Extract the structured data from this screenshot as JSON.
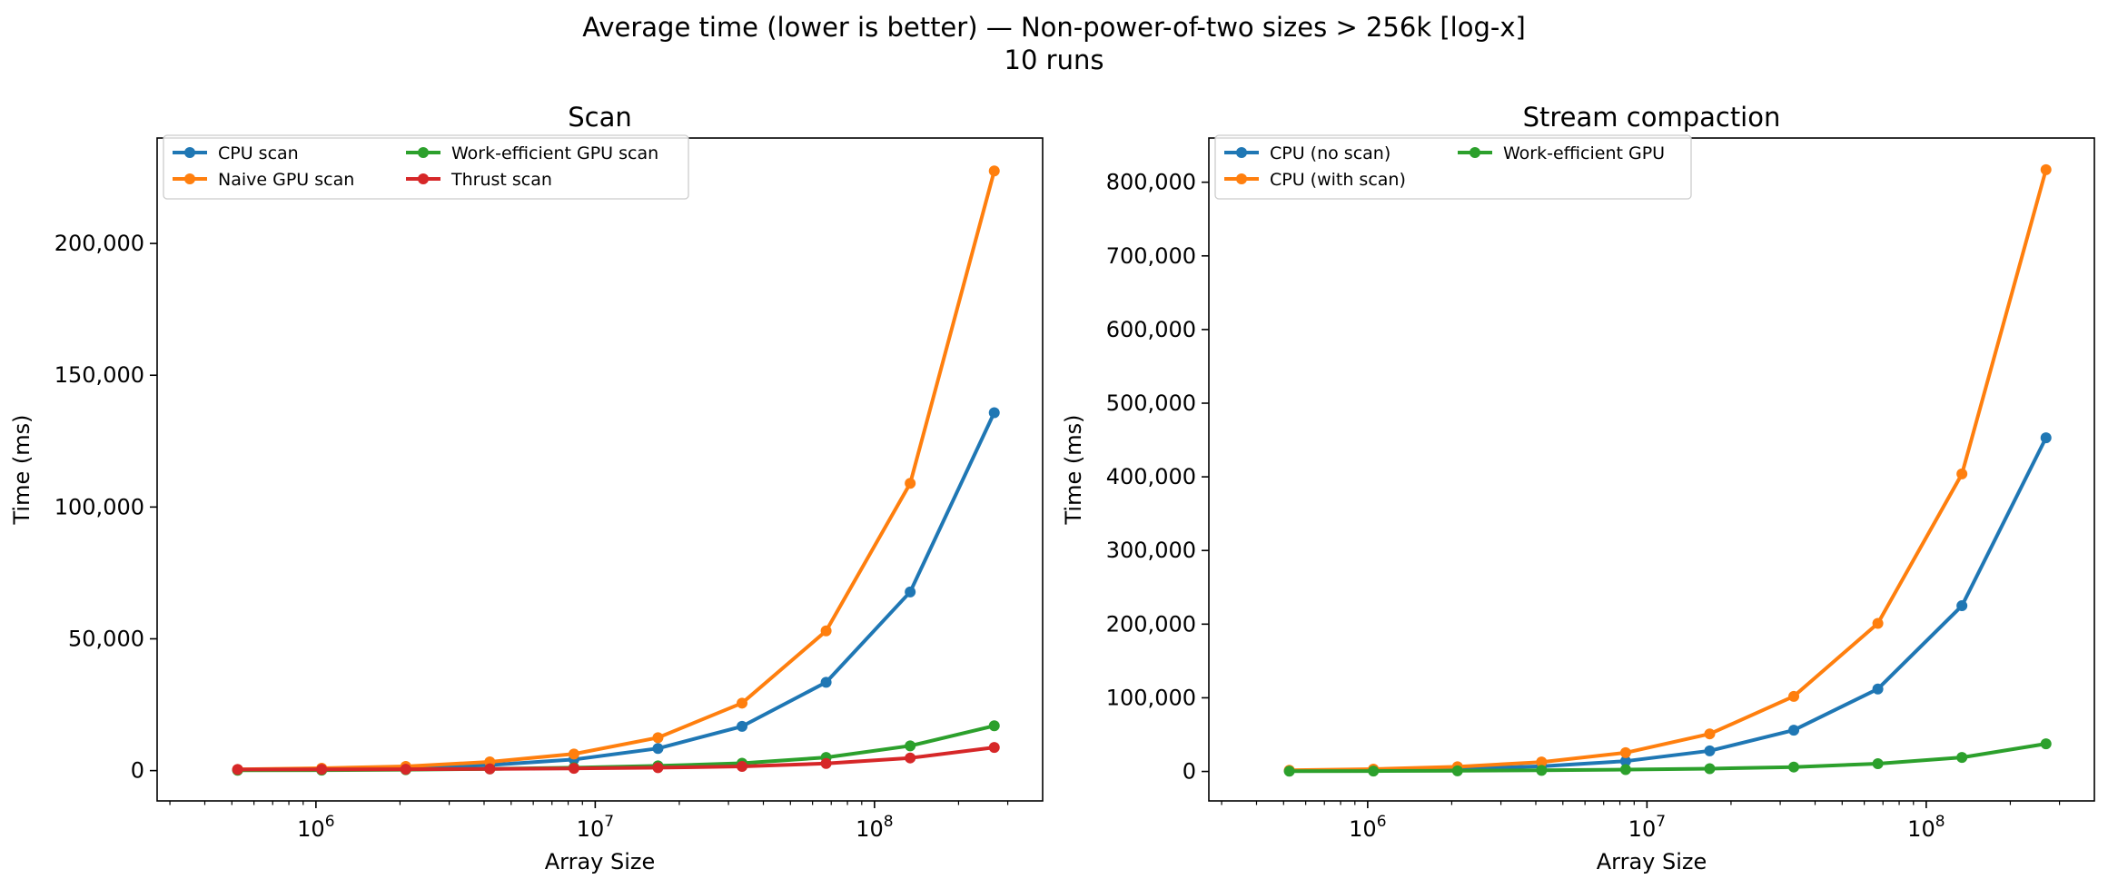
{
  "figure": {
    "title_line1": "Average time (lower is better) — Non-power-of-two sizes > 256k [log-x]",
    "title_line2": "10 runs"
  },
  "chart_data": [
    {
      "type": "line",
      "title": "Scan",
      "xlabel": "Array Size",
      "ylabel": "Time (ms)",
      "xscale": "log",
      "xlim": [
        270000,
        400000000
      ],
      "ylim": [
        -11500,
        240000
      ],
      "x_ticks": [
        1000000,
        10000000,
        100000000
      ],
      "x_tick_labels": [
        [
          "10",
          "6"
        ],
        [
          "10",
          "7"
        ],
        [
          "10",
          "8"
        ]
      ],
      "y_ticks": [
        0,
        50000,
        100000,
        150000,
        200000
      ],
      "y_tick_labels": [
        "0",
        "50,000",
        "100,000",
        "150,000",
        "200,000"
      ],
      "grid": false,
      "legend": {
        "position": "top-left",
        "columns": 2
      },
      "x": [
        524285,
        1048573,
        2097149,
        4194301,
        8388605,
        16777213,
        33554429,
        67108861,
        134217725,
        268435453
      ],
      "series": [
        {
          "name": "CPU scan",
          "color": "#1f77b4",
          "values": [
            250,
            520,
            1050,
            2100,
            4200,
            8400,
            16800,
            33500,
            67800,
            135800
          ]
        },
        {
          "name": "Naive GPU scan",
          "color": "#ff7f0e",
          "values": [
            450,
            900,
            1600,
            3300,
            6300,
            12500,
            25600,
            53000,
            109000,
            227500
          ]
        },
        {
          "name": "Work-efficient GPU scan",
          "color": "#2ca02c",
          "values": [
            120,
            180,
            350,
            650,
            1100,
            1800,
            2800,
            5000,
            9400,
            17000
          ]
        },
        {
          "name": "Thrust scan",
          "color": "#d62728",
          "values": [
            420,
            460,
            520,
            650,
            850,
            1100,
            1600,
            2700,
            4800,
            8800
          ]
        }
      ]
    },
    {
      "type": "line",
      "title": "Stream compaction",
      "xlabel": "Array Size",
      "ylabel": "Time (ms)",
      "xscale": "log",
      "xlim": [
        270000,
        400000000
      ],
      "ylim": [
        -40000,
        860000
      ],
      "x_ticks": [
        1000000,
        10000000,
        100000000
      ],
      "x_tick_labels": [
        [
          "10",
          "6"
        ],
        [
          "10",
          "7"
        ],
        [
          "10",
          "8"
        ]
      ],
      "y_ticks": [
        0,
        100000,
        200000,
        300000,
        400000,
        500000,
        600000,
        700000,
        800000
      ],
      "y_tick_labels": [
        "0",
        "100,000",
        "200,000",
        "300,000",
        "400,000",
        "500,000",
        "600,000",
        "700,000",
        "800,000"
      ],
      "grid": false,
      "legend": {
        "position": "top-left",
        "columns": 2
      },
      "x": [
        524285,
        1048573,
        2097149,
        4194301,
        8388605,
        16777213,
        33554429,
        67108861,
        134217725,
        268435453
      ],
      "series": [
        {
          "name": "CPU (no scan)",
          "color": "#1f77b4",
          "values": [
            800,
            1700,
            3500,
            7000,
            14000,
            28000,
            56000,
            112000,
            225000,
            453000
          ]
        },
        {
          "name": "CPU (with scan)",
          "color": "#ff7f0e",
          "values": [
            1600,
            3200,
            6400,
            12800,
            25500,
            51000,
            102000,
            201000,
            404000,
            817000
          ]
        },
        {
          "name": "Work-efficient GPU",
          "color": "#2ca02c",
          "values": [
            300,
            500,
            900,
            1500,
            2500,
            3800,
            6000,
            10500,
            19000,
            37500
          ]
        }
      ]
    }
  ]
}
